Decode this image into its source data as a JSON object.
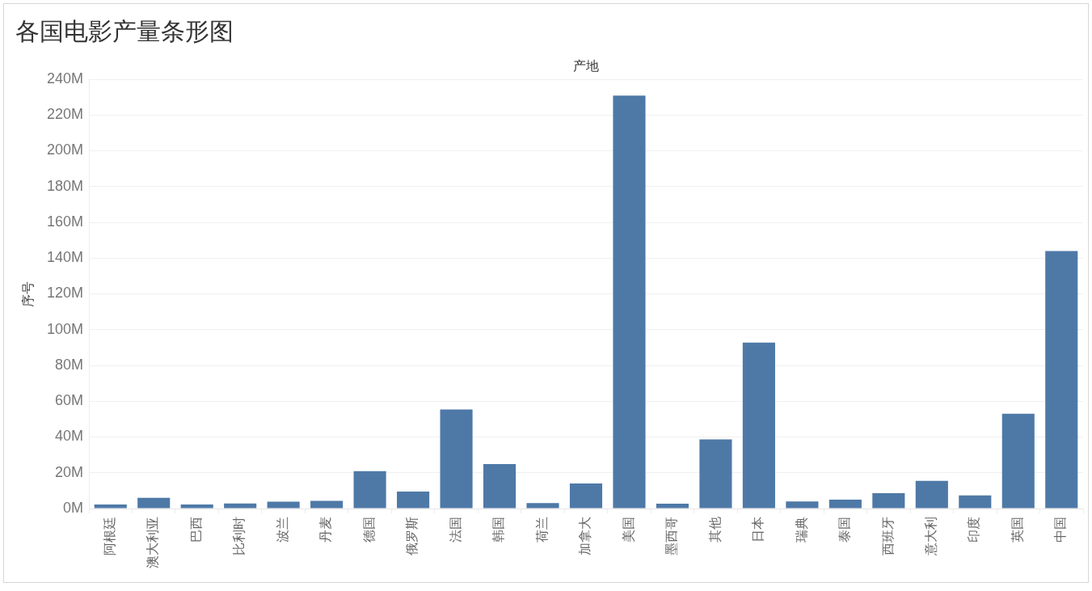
{
  "chart_data": {
    "type": "bar",
    "title": "各国电影产量条形图",
    "xlabel": "产地",
    "ylabel": "序号",
    "categories": [
      "阿根廷",
      "澳大利亚",
      "巴西",
      "比利时",
      "波兰",
      "丹麦",
      "德国",
      "俄罗斯",
      "法国",
      "韩国",
      "荷兰",
      "加拿大",
      "美国",
      "墨西哥",
      "其他",
      "日本",
      "瑞典",
      "泰国",
      "西班牙",
      "意大利",
      "印度",
      "英国",
      "中国"
    ],
    "values": [
      2300000,
      6000000,
      2300000,
      2800000,
      3800000,
      4300000,
      20900000,
      9500000,
      55400000,
      24900000,
      3000000,
      14000000,
      230800000,
      2700000,
      38700000,
      92800000,
      4000000,
      5000000,
      8600000,
      15500000,
      7300000,
      53000000,
      144000000
    ],
    "color": "#4e79a7",
    "ylim": [
      0,
      240000000
    ],
    "yticks": [
      {
        "value": 0,
        "label": "0M"
      },
      {
        "value": 20000000,
        "label": "20M"
      },
      {
        "value": 40000000,
        "label": "40M"
      },
      {
        "value": 60000000,
        "label": "60M"
      },
      {
        "value": 80000000,
        "label": "80M"
      },
      {
        "value": 100000000,
        "label": "100M"
      },
      {
        "value": 120000000,
        "label": "120M"
      },
      {
        "value": 140000000,
        "label": "140M"
      },
      {
        "value": 160000000,
        "label": "160M"
      },
      {
        "value": 180000000,
        "label": "180M"
      },
      {
        "value": 200000000,
        "label": "200M"
      },
      {
        "value": 220000000,
        "label": "220M"
      },
      {
        "value": 240000000,
        "label": "240M"
      }
    ],
    "grid": "y"
  }
}
